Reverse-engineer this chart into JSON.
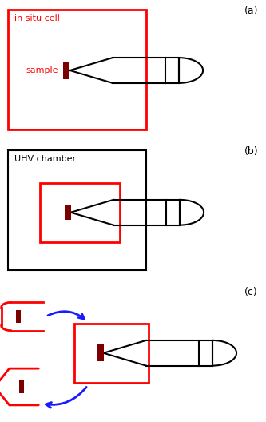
{
  "fig_width": 3.33,
  "fig_height": 5.28,
  "dpi": 100,
  "bg_color": "#ffffff",
  "red_color": "#ff0000",
  "dark_red": "#7B0000",
  "black": "#000000",
  "blue": "#1a1aff",
  "panel_labels": [
    "(a)",
    "(b)",
    "(c)"
  ],
  "label_fontsize": 9,
  "text_fontsize": 8
}
